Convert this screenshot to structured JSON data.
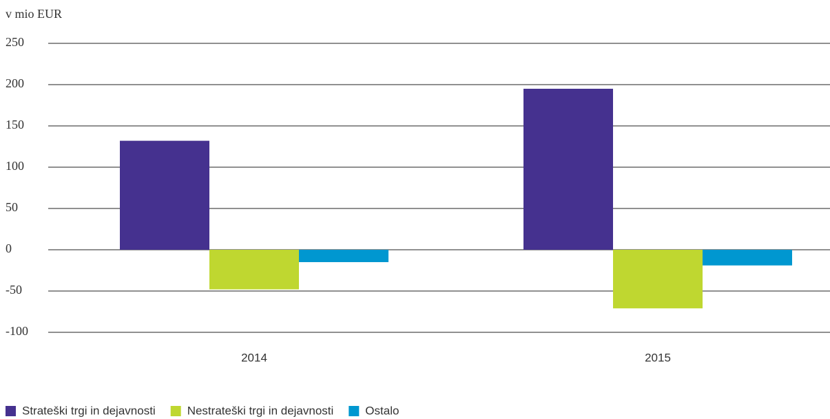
{
  "chart_data": {
    "type": "bar",
    "y_axis_label": "v mio EUR",
    "categories": [
      "2014",
      "2015"
    ],
    "series": [
      {
        "name": "Strateški trgi in dejavnosti",
        "color": "#45318f",
        "values": [
          132,
          195
        ]
      },
      {
        "name": "Nestrateški trgi in dejavnosti",
        "color": "#bfd730",
        "values": [
          -48,
          -71
        ]
      },
      {
        "name": "Ostalo",
        "color": "#0097d0",
        "values": [
          -15,
          -19
        ]
      }
    ],
    "ylim": [
      -100,
      250
    ],
    "yticks": [
      -100,
      -50,
      0,
      50,
      100,
      150,
      200,
      250
    ],
    "grid": true
  }
}
